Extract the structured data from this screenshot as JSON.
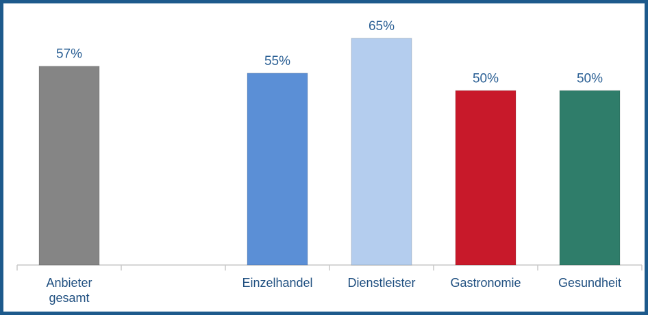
{
  "chart_data": {
    "type": "bar",
    "categories": [
      "Anbieter gesamt",
      null,
      "Einzelhandel",
      "Dienstleister",
      "Gastronomie",
      "Gesundheit"
    ],
    "values": [
      57,
      null,
      55,
      65,
      50,
      50
    ],
    "value_labels": [
      "57%",
      null,
      "55%",
      "65%",
      "50%",
      "50%"
    ],
    "colors": [
      "#858585",
      null,
      "#5b8fd6",
      "#b4cdee",
      "#c8192a",
      "#2f7d6a"
    ],
    "ylim": [
      0,
      75
    ]
  }
}
